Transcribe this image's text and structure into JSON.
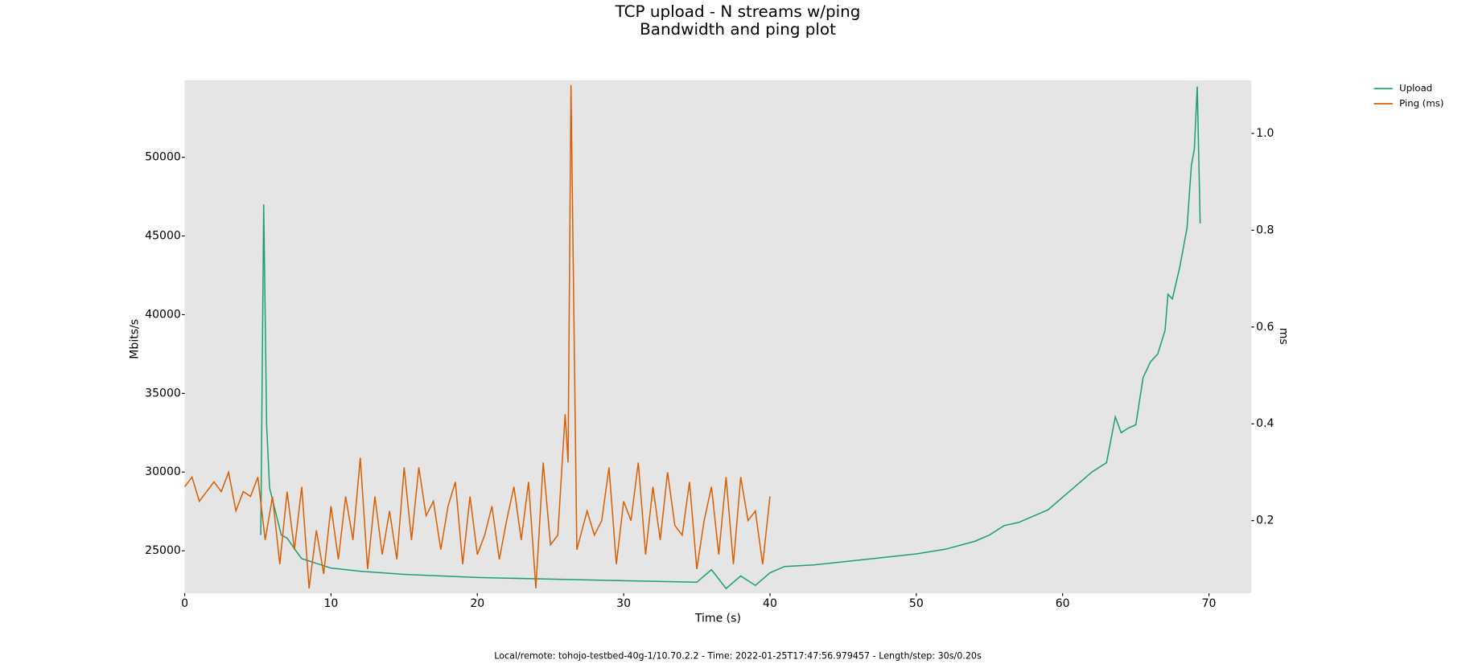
{
  "chart_data": {
    "type": "line",
    "title": "TCP upload - N streams w/ping",
    "subtitle": "Bandwidth and ping plot",
    "xlabel": "Time (s)",
    "ylabel": "Mbits/s",
    "y2label": "ms",
    "footer": "Local/remote: tohojo-testbed-40g-1/10.70.2.2 - Time: 2022-01-25T17:47:56.979457 - Length/step: 30s/0.20s",
    "xlim": [
      0,
      72.9
    ],
    "xticks": [
      0,
      10,
      20,
      30,
      40,
      50,
      60,
      70
    ],
    "ylim": [
      22300,
      54900
    ],
    "yticks": [
      25000,
      30000,
      35000,
      40000,
      45000,
      50000
    ],
    "y2lim": [
      0.05,
      1.11
    ],
    "y2ticks": [
      0.2,
      0.4,
      0.6,
      0.8,
      {
        "value": 1,
        "label": "1.0"
      }
    ],
    "background": "#e5e5e5",
    "legend": "outside-top-right",
    "series": [
      {
        "name": "Upload",
        "color": "#1b9e77",
        "axis": "y",
        "x": [
          5.2,
          5.4,
          5.6,
          5.8,
          6.2,
          6.6,
          7,
          7.6,
          8,
          9,
          10,
          12,
          15,
          20,
          25,
          30,
          35,
          36,
          37,
          38,
          39,
          40,
          41,
          43,
          45,
          48,
          50,
          52,
          54,
          55,
          56,
          57,
          58,
          59,
          60,
          61,
          62,
          63,
          63.6,
          64,
          64.5,
          65,
          65.5,
          66,
          66.5,
          67,
          67.2,
          67.5,
          68,
          68.5,
          68.8,
          69,
          69.2,
          69.4
        ],
        "values": [
          26000,
          47000,
          33000,
          29000,
          27500,
          26000,
          25800,
          25000,
          24500,
          24200,
          23900,
          23700,
          23500,
          23300,
          23200,
          23100,
          23000,
          23800,
          22600,
          23400,
          22800,
          23600,
          24000,
          24100,
          24300,
          24600,
          24800,
          25100,
          25600,
          26000,
          26600,
          26800,
          27200,
          27600,
          28400,
          29200,
          30000,
          30600,
          33500,
          32500,
          32800,
          33000,
          36000,
          37000,
          37500,
          39000,
          41300,
          41000,
          43000,
          45500,
          49500,
          50500,
          54500,
          45800
        ]
      },
      {
        "name": "Ping (ms)",
        "color": "#d95f02",
        "axis": "y2",
        "x": [
          0,
          0.5,
          1,
          1.5,
          2,
          2.5,
          3,
          3.5,
          4,
          4.5,
          5,
          5.5,
          6,
          6.5,
          7,
          7.5,
          8,
          8.5,
          9,
          9.5,
          10,
          10.5,
          11,
          11.5,
          12,
          12.5,
          13,
          13.5,
          14,
          14.5,
          15,
          15.5,
          16,
          16.5,
          17,
          17.5,
          18,
          18.5,
          19,
          19.5,
          20,
          20.5,
          21,
          21.5,
          22,
          22.5,
          23,
          23.5,
          24,
          24.5,
          25,
          25.5,
          26,
          26.2,
          26.4,
          26.8,
          27.5,
          28,
          28.5,
          29,
          29.5,
          30,
          30.5,
          31,
          31.5,
          32,
          32.5,
          33,
          33.5,
          34,
          34.5,
          35,
          35.5,
          36,
          36.5,
          37,
          37.5,
          38,
          38.5,
          39,
          39.5,
          40
        ],
        "values": [
          0.27,
          0.29,
          0.24,
          0.26,
          0.28,
          0.26,
          0.3,
          0.22,
          0.26,
          0.25,
          0.29,
          0.16,
          0.25,
          0.11,
          0.26,
          0.14,
          0.27,
          0.06,
          0.18,
          0.09,
          0.23,
          0.12,
          0.25,
          0.16,
          0.33,
          0.1,
          0.25,
          0.13,
          0.22,
          0.12,
          0.31,
          0.16,
          0.31,
          0.21,
          0.24,
          0.14,
          0.23,
          0.28,
          0.11,
          0.25,
          0.13,
          0.17,
          0.23,
          0.12,
          0.2,
          0.27,
          0.16,
          0.28,
          0.06,
          0.32,
          0.15,
          0.17,
          0.42,
          0.32,
          1.1,
          0.14,
          0.22,
          0.17,
          0.2,
          0.31,
          0.11,
          0.24,
          0.2,
          0.32,
          0.13,
          0.27,
          0.16,
          0.3,
          0.19,
          0.17,
          0.28,
          0.1,
          0.2,
          0.27,
          0.13,
          0.29,
          0.11,
          0.29,
          0.2,
          0.22,
          0.11,
          0.25
        ]
      }
    ]
  }
}
